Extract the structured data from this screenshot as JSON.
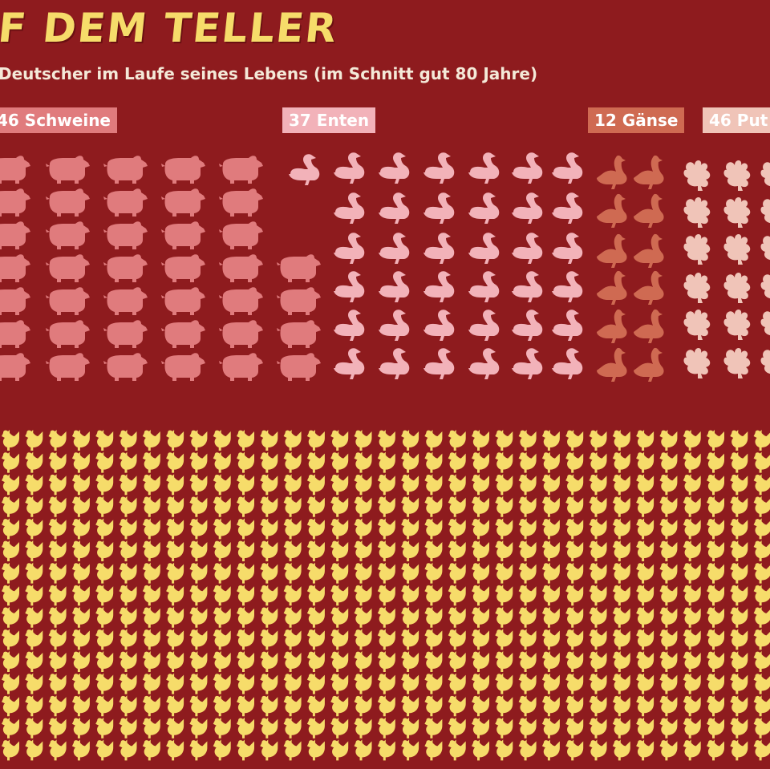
{
  "header": {
    "title": "F DEM TELLER",
    "subtitle": "Deutscher im Laufe seines Lebens (im Schnitt gut 80 Jahre)"
  },
  "categories": [
    {
      "key": "pigs",
      "label": "46 Schweine",
      "count": 46,
      "color": "#e07b7d",
      "icon": "pig-icon"
    },
    {
      "key": "ducks",
      "label": "37 Enten",
      "count": 37,
      "color": "#f2b2b9",
      "icon": "duck-icon"
    },
    {
      "key": "geese",
      "label": "12 Gänse",
      "count": 12,
      "color": "#cf6a52",
      "icon": "goose-icon"
    },
    {
      "key": "turkeys",
      "label": "46 Put",
      "count": 46,
      "color": "#f0c4b8",
      "icon": "turkey-icon"
    },
    {
      "key": "chickens",
      "label": "",
      "count": 945,
      "color": "#f6dc6a",
      "icon": "chicken-icon"
    }
  ],
  "colors": {
    "background": "#8e1b1e",
    "title": "#f6dc6a",
    "subtitle": "#f4e9d8"
  }
}
